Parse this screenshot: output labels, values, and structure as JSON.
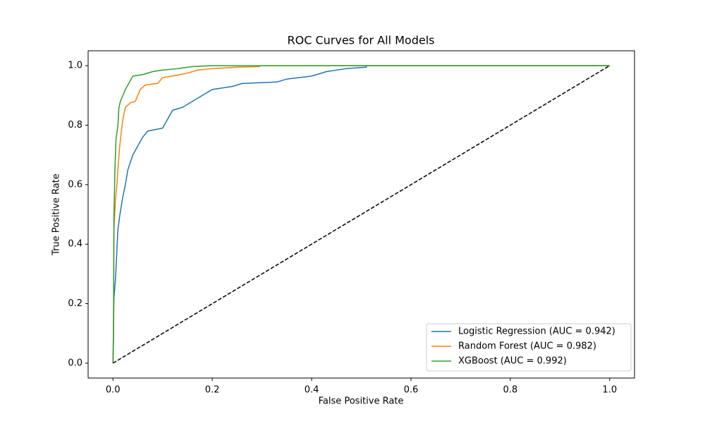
{
  "chart_data": {
    "type": "line",
    "title": "ROC Curves for All Models",
    "x_label": "False Positive Rate",
    "y_label": "True Positive Rate",
    "xlim": [
      -0.05,
      1.05
    ],
    "ylim": [
      -0.05,
      1.05
    ],
    "xticks": [
      {
        "value": 0,
        "label": "0.0"
      },
      0.2,
      0.4,
      0.6,
      0.8,
      {
        "value": 1,
        "label": "1.0"
      }
    ],
    "yticks": [
      {
        "value": 0,
        "label": "0.0"
      },
      0.2,
      0.4,
      0.6,
      0.8,
      {
        "value": 1,
        "label": "1.0"
      }
    ],
    "legend": "lower right",
    "series": [
      {
        "name": "Logistic Regression (AUC = 0.942)",
        "color": "#1f77b4",
        "x": [
          0,
          0.002,
          0.005,
          0.008,
          0.01,
          0.014,
          0.02,
          0.025,
          0.03,
          0.04,
          0.05,
          0.06,
          0.07,
          0.1,
          0.11,
          0.12,
          0.14,
          0.16,
          0.18,
          0.2,
          0.24,
          0.26,
          0.33,
          0.35,
          0.4,
          0.43,
          0.47,
          0.51,
          0.51,
          1
        ],
        "values": [
          0,
          0.22,
          0.28,
          0.38,
          0.45,
          0.5,
          0.56,
          0.6,
          0.65,
          0.7,
          0.73,
          0.76,
          0.78,
          0.79,
          0.82,
          0.85,
          0.86,
          0.88,
          0.9,
          0.92,
          0.93,
          0.94,
          0.945,
          0.955,
          0.965,
          0.98,
          0.99,
          0.995,
          1,
          1
        ]
      },
      {
        "name": "Random Forest (AUC = 0.982)",
        "color": "#ff7f0e",
        "x": [
          0,
          0.001,
          0.002,
          0.005,
          0.008,
          0.01,
          0.013,
          0.017,
          0.02,
          0.025,
          0.035,
          0.045,
          0.055,
          0.065,
          0.09,
          0.1,
          0.12,
          0.15,
          0.17,
          0.2,
          0.25,
          0.295,
          0.295,
          1
        ],
        "values": [
          0,
          0.07,
          0.45,
          0.55,
          0.6,
          0.65,
          0.72,
          0.78,
          0.82,
          0.86,
          0.875,
          0.88,
          0.92,
          0.935,
          0.94,
          0.96,
          0.965,
          0.975,
          0.985,
          0.99,
          0.995,
          0.997,
          1,
          1
        ]
      },
      {
        "name": "XGBoost (AUC = 0.992)",
        "color": "#2ca02c",
        "x": [
          0,
          0.001,
          0.002,
          0.004,
          0.006,
          0.01,
          0.012,
          0.015,
          0.02,
          0.025,
          0.03,
          0.035,
          0.04,
          0.06,
          0.08,
          0.1,
          0.13,
          0.16,
          0.2,
          1
        ],
        "values": [
          0,
          0.07,
          0.5,
          0.65,
          0.75,
          0.8,
          0.86,
          0.88,
          0.9,
          0.92,
          0.935,
          0.95,
          0.965,
          0.97,
          0.98,
          0.985,
          0.99,
          0.997,
          1,
          1
        ]
      }
    ],
    "reference_line": {
      "x": [
        0,
        1
      ],
      "values": [
        0,
        1
      ],
      "color": "#000000"
    }
  }
}
